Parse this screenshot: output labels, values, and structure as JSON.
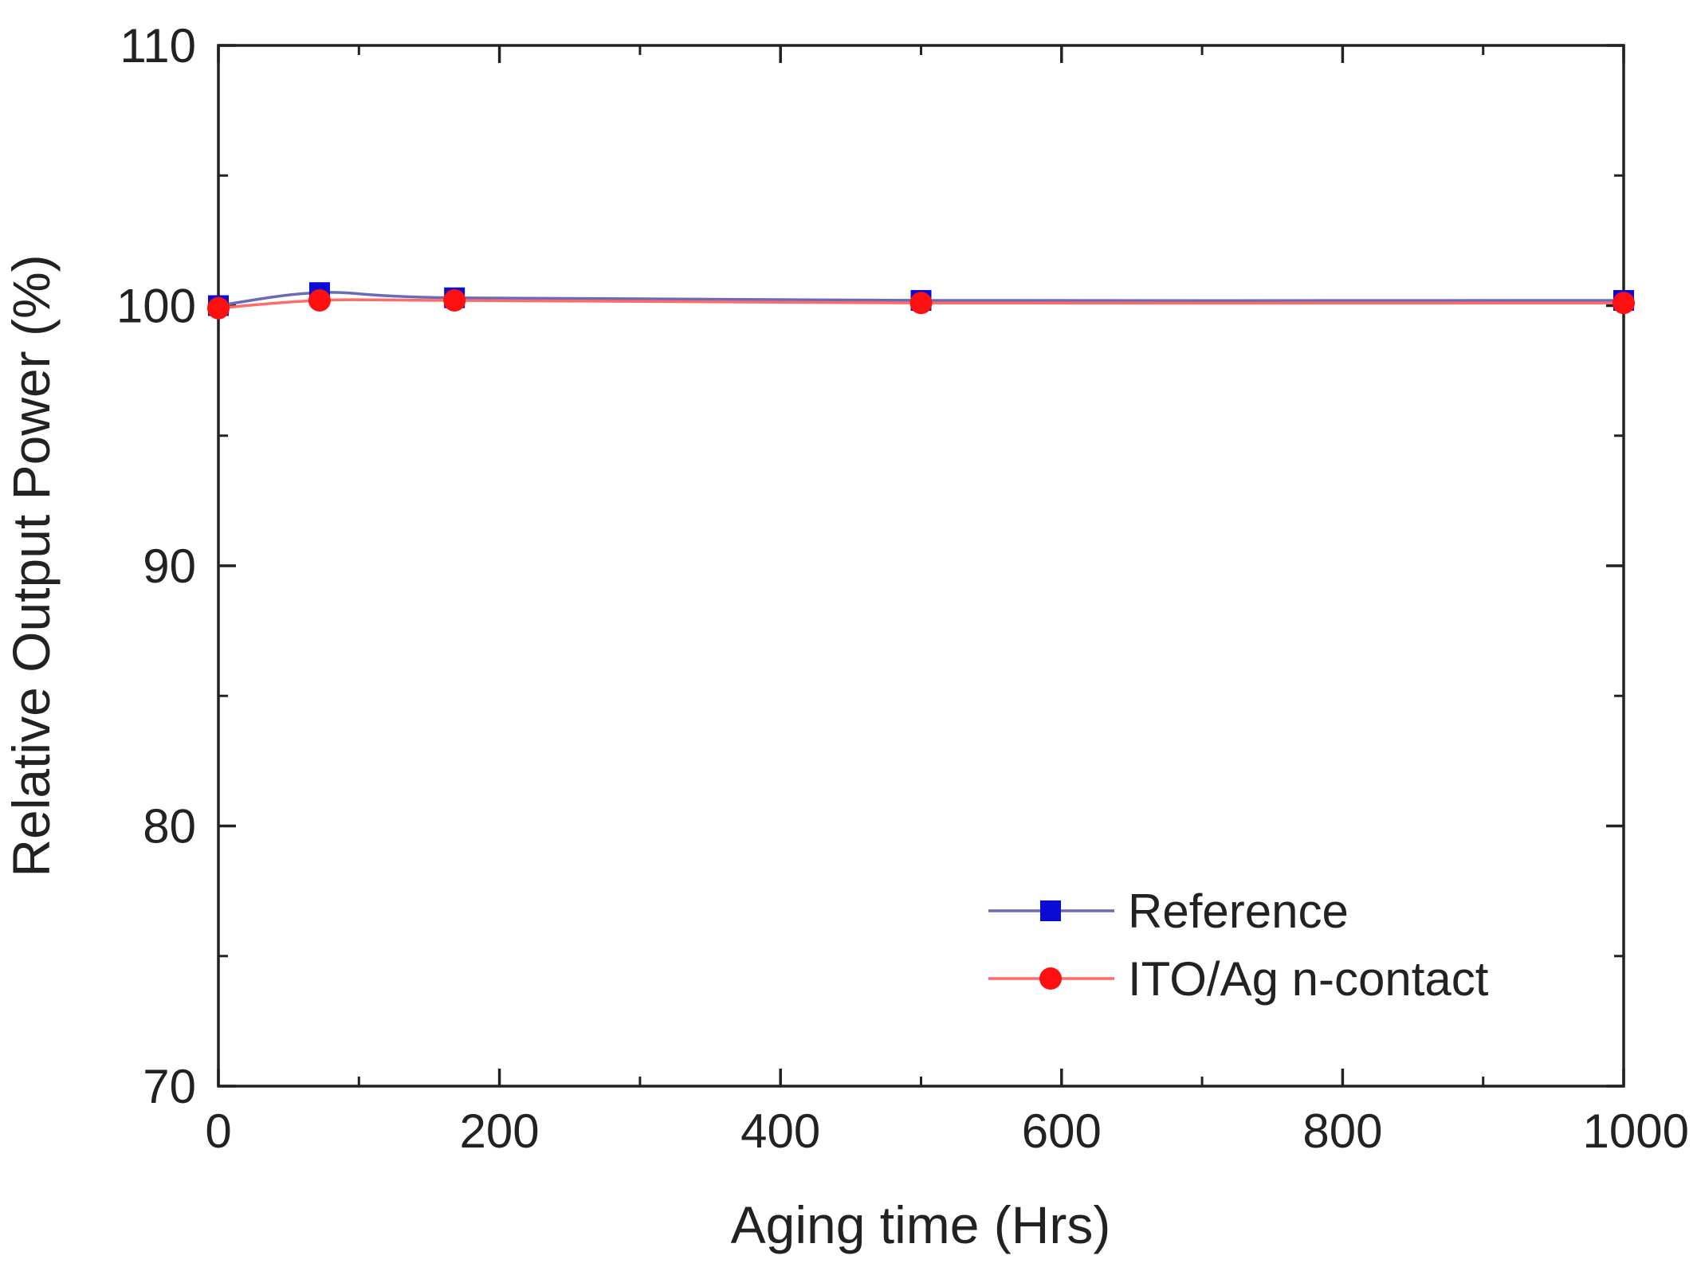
{
  "chart_data": {
    "type": "line",
    "title": "",
    "xlabel": "Aging time (Hrs)",
    "ylabel": "Relative Output Power (%)",
    "xlim": [
      0,
      1000
    ],
    "ylim": [
      70,
      110
    ],
    "xticks": [
      0,
      200,
      400,
      600,
      800,
      1000
    ],
    "yticks": [
      70,
      80,
      90,
      100,
      110
    ],
    "xtick_labels": [
      "0",
      "200",
      "400",
      "600",
      "800",
      "1000"
    ],
    "ytick_labels": [
      "70",
      "80",
      "90",
      "100",
      "110"
    ],
    "x_minor_step": 100,
    "y_minor_step": 5,
    "grid": false,
    "legend_position": "bottom-right",
    "series": [
      {
        "name": "Reference",
        "marker": "square",
        "marker_color": "#0b0bd6",
        "line_color": "#6a6ab8",
        "x": [
          0,
          72,
          168,
          500,
          1000
        ],
        "y": [
          100.0,
          100.5,
          100.3,
          100.2,
          100.2
        ]
      },
      {
        "name": "ITO/Ag n-contact",
        "marker": "circle",
        "marker_color": "#ff1010",
        "line_color": "#ff6a6a",
        "x": [
          0,
          72,
          168,
          500,
          1000
        ],
        "y": [
          99.9,
          100.2,
          100.2,
          100.1,
          100.1
        ]
      }
    ]
  }
}
